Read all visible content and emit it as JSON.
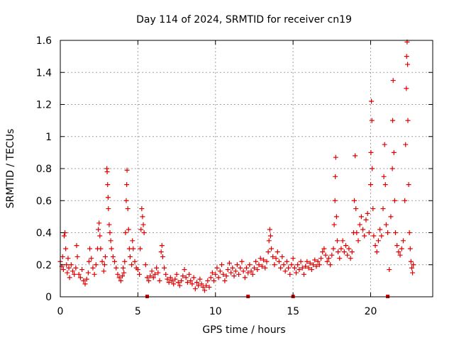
{
  "chart_data": {
    "type": "scatter",
    "title": "Day 114 of 2024, SRMTID for receiver cn19",
    "xlabel": "GPS time / hours",
    "ylabel": "SRMTID / TECUs",
    "xlim": [
      0,
      24
    ],
    "ylim": [
      0,
      1.6
    ],
    "xticks": [
      0,
      5,
      10,
      15,
      20
    ],
    "yticks": [
      0,
      0.2,
      0.4,
      0.6,
      0.8,
      1.0,
      1.2,
      1.4,
      1.6
    ],
    "xtick_labels": [
      "0",
      "5",
      "10",
      "15",
      "20"
    ],
    "ytick_labels": [
      "0",
      "0.2",
      "0.4",
      "0.6",
      "0.8",
      "1",
      "1.2",
      "1.4",
      "1.6"
    ],
    "grid": true,
    "marker": "+",
    "colors": {
      "series": "#e00000",
      "grid": "#a0a0a0",
      "axis": "#000000"
    },
    "series": [
      {
        "name": "SRMTID",
        "points": [
          [
            0.0,
            0.22
          ],
          [
            0.1,
            0.19
          ],
          [
            0.15,
            0.25
          ],
          [
            0.2,
            0.17
          ],
          [
            0.25,
            0.38
          ],
          [
            0.3,
            0.4
          ],
          [
            0.35,
            0.3
          ],
          [
            0.4,
            0.2
          ],
          [
            0.45,
            0.15
          ],
          [
            0.5,
            0.24
          ],
          [
            0.55,
            0.18
          ],
          [
            0.6,
            0.12
          ],
          [
            0.7,
            0.2
          ],
          [
            0.8,
            0.16
          ],
          [
            0.9,
            0.14
          ],
          [
            1.0,
            0.18
          ],
          [
            1.05,
            0.32
          ],
          [
            1.1,
            0.25
          ],
          [
            1.2,
            0.14
          ],
          [
            1.3,
            0.12
          ],
          [
            1.4,
            0.17
          ],
          [
            1.5,
            0.1
          ],
          [
            1.6,
            0.08
          ],
          [
            1.7,
            0.11
          ],
          [
            1.8,
            0.15
          ],
          [
            1.85,
            0.22
          ],
          [
            1.9,
            0.3
          ],
          [
            2.0,
            0.24
          ],
          [
            2.1,
            0.18
          ],
          [
            2.2,
            0.14
          ],
          [
            2.3,
            0.2
          ],
          [
            2.4,
            0.3
          ],
          [
            2.45,
            0.42
          ],
          [
            2.5,
            0.46
          ],
          [
            2.55,
            0.38
          ],
          [
            2.6,
            0.3
          ],
          [
            2.7,
            0.22
          ],
          [
            2.8,
            0.16
          ],
          [
            2.85,
            0.2
          ],
          [
            2.9,
            0.25
          ],
          [
            3.0,
            0.8
          ],
          [
            3.02,
            0.78
          ],
          [
            3.05,
            0.7
          ],
          [
            3.08,
            0.62
          ],
          [
            3.1,
            0.55
          ],
          [
            3.15,
            0.45
          ],
          [
            3.2,
            0.4
          ],
          [
            3.25,
            0.35
          ],
          [
            3.3,
            0.3
          ],
          [
            3.4,
            0.25
          ],
          [
            3.5,
            0.22
          ],
          [
            3.6,
            0.18
          ],
          [
            3.7,
            0.14
          ],
          [
            3.8,
            0.12
          ],
          [
            3.9,
            0.1
          ],
          [
            4.0,
            0.13
          ],
          [
            4.05,
            0.18
          ],
          [
            4.1,
            0.15
          ],
          [
            4.15,
            0.22
          ],
          [
            4.2,
            0.4
          ],
          [
            4.25,
            0.6
          ],
          [
            4.28,
            0.7
          ],
          [
            4.3,
            0.79
          ],
          [
            4.35,
            0.55
          ],
          [
            4.4,
            0.42
          ],
          [
            4.45,
            0.3
          ],
          [
            4.5,
            0.25
          ],
          [
            4.6,
            0.2
          ],
          [
            4.65,
            0.35
          ],
          [
            4.7,
            0.3
          ],
          [
            4.8,
            0.22
          ],
          [
            4.9,
            0.18
          ],
          [
            5.0,
            0.17
          ],
          [
            5.1,
            0.14
          ],
          [
            5.15,
            0.3
          ],
          [
            5.2,
            0.42
          ],
          [
            5.25,
            0.55
          ],
          [
            5.3,
            0.5
          ],
          [
            5.35,
            0.45
          ],
          [
            5.4,
            0.4
          ],
          [
            5.5,
            0.2
          ],
          [
            5.6,
            0.12
          ],
          [
            5.7,
            0.1
          ],
          [
            5.8,
            0.13
          ],
          [
            5.9,
            0.16
          ],
          [
            6.0,
            0.12
          ],
          [
            6.1,
            0.14
          ],
          [
            6.2,
            0.18
          ],
          [
            6.3,
            0.15
          ],
          [
            6.4,
            0.1
          ],
          [
            6.5,
            0.28
          ],
          [
            6.55,
            0.32
          ],
          [
            6.6,
            0.25
          ],
          [
            6.7,
            0.18
          ],
          [
            6.8,
            0.14
          ],
          [
            6.9,
            0.11
          ],
          [
            7.0,
            0.09
          ],
          [
            7.1,
            0.12
          ],
          [
            7.2,
            0.1
          ],
          [
            7.3,
            0.08
          ],
          [
            7.4,
            0.11
          ],
          [
            7.5,
            0.14
          ],
          [
            7.6,
            0.09
          ],
          [
            7.7,
            0.07
          ],
          [
            7.8,
            0.1
          ],
          [
            7.9,
            0.13
          ],
          [
            8.0,
            0.17
          ],
          [
            8.1,
            0.12
          ],
          [
            8.2,
            0.09
          ],
          [
            8.3,
            0.14
          ],
          [
            8.4,
            0.1
          ],
          [
            8.5,
            0.08
          ],
          [
            8.6,
            0.12
          ],
          [
            8.7,
            0.05
          ],
          [
            8.8,
            0.09
          ],
          [
            8.9,
            0.07
          ],
          [
            9.0,
            0.11
          ],
          [
            9.1,
            0.08
          ],
          [
            9.2,
            0.06
          ],
          [
            9.3,
            0.04
          ],
          [
            9.4,
            0.07
          ],
          [
            9.5,
            0.1
          ],
          [
            9.6,
            0.06
          ],
          [
            9.7,
            0.12
          ],
          [
            9.8,
            0.15
          ],
          [
            9.9,
            0.1
          ],
          [
            10.0,
            0.14
          ],
          [
            10.1,
            0.18
          ],
          [
            10.2,
            0.12
          ],
          [
            10.3,
            0.16
          ],
          [
            10.4,
            0.2
          ],
          [
            10.5,
            0.14
          ],
          [
            10.6,
            0.1
          ],
          [
            10.7,
            0.13
          ],
          [
            10.8,
            0.17
          ],
          [
            10.9,
            0.21
          ],
          [
            11.0,
            0.15
          ],
          [
            11.1,
            0.18
          ],
          [
            11.2,
            0.13
          ],
          [
            11.3,
            0.16
          ],
          [
            11.4,
            0.2
          ],
          [
            11.5,
            0.14
          ],
          [
            11.6,
            0.18
          ],
          [
            11.7,
            0.22
          ],
          [
            11.8,
            0.16
          ],
          [
            11.9,
            0.12
          ],
          [
            12.0,
            0.18
          ],
          [
            12.1,
            0.15
          ],
          [
            12.2,
            0.2
          ],
          [
            12.3,
            0.16
          ],
          [
            12.4,
            0.14
          ],
          [
            12.5,
            0.18
          ],
          [
            12.6,
            0.22
          ],
          [
            12.7,
            0.17
          ],
          [
            12.8,
            0.2
          ],
          [
            12.9,
            0.24
          ],
          [
            13.0,
            0.19
          ],
          [
            13.1,
            0.23
          ],
          [
            13.2,
            0.18
          ],
          [
            13.3,
            0.22
          ],
          [
            13.4,
            0.28
          ],
          [
            13.45,
            0.35
          ],
          [
            13.5,
            0.42
          ],
          [
            13.55,
            0.38
          ],
          [
            13.6,
            0.3
          ],
          [
            13.7,
            0.25
          ],
          [
            13.8,
            0.2
          ],
          [
            13.9,
            0.24
          ],
          [
            14.0,
            0.28
          ],
          [
            14.1,
            0.22
          ],
          [
            14.2,
            0.18
          ],
          [
            14.3,
            0.25
          ],
          [
            14.4,
            0.2
          ],
          [
            14.5,
            0.16
          ],
          [
            14.6,
            0.22
          ],
          [
            14.7,
            0.18
          ],
          [
            14.8,
            0.14
          ],
          [
            14.9,
            0.2
          ],
          [
            15.0,
            0.24
          ],
          [
            15.1,
            0.18
          ],
          [
            15.2,
            0.15
          ],
          [
            15.3,
            0.2
          ],
          [
            15.4,
            0.17
          ],
          [
            15.5,
            0.22
          ],
          [
            15.6,
            0.18
          ],
          [
            15.7,
            0.14
          ],
          [
            15.8,
            0.19
          ],
          [
            15.9,
            0.22
          ],
          [
            16.0,
            0.18
          ],
          [
            16.1,
            0.21
          ],
          [
            16.2,
            0.17
          ],
          [
            16.3,
            0.2
          ],
          [
            16.4,
            0.23
          ],
          [
            16.5,
            0.19
          ],
          [
            16.6,
            0.22
          ],
          [
            16.7,
            0.2
          ],
          [
            16.8,
            0.24
          ],
          [
            16.9,
            0.28
          ],
          [
            17.0,
            0.3
          ],
          [
            17.1,
            0.26
          ],
          [
            17.2,
            0.22
          ],
          [
            17.3,
            0.24
          ],
          [
            17.4,
            0.2
          ],
          [
            17.5,
            0.26
          ],
          [
            17.6,
            0.3
          ],
          [
            17.65,
            0.45
          ],
          [
            17.7,
            0.6
          ],
          [
            17.72,
            0.75
          ],
          [
            17.75,
            0.87
          ],
          [
            17.8,
            0.5
          ],
          [
            17.85,
            0.35
          ],
          [
            17.9,
            0.28
          ],
          [
            18.0,
            0.24
          ],
          [
            18.1,
            0.3
          ],
          [
            18.2,
            0.35
          ],
          [
            18.3,
            0.28
          ],
          [
            18.4,
            0.32
          ],
          [
            18.5,
            0.26
          ],
          [
            18.6,
            0.3
          ],
          [
            18.7,
            0.24
          ],
          [
            18.8,
            0.28
          ],
          [
            18.9,
            0.4
          ],
          [
            18.95,
            0.6
          ],
          [
            19.0,
            0.88
          ],
          [
            19.05,
            0.55
          ],
          [
            19.1,
            0.4
          ],
          [
            19.2,
            0.35
          ],
          [
            19.3,
            0.45
          ],
          [
            19.4,
            0.5
          ],
          [
            19.5,
            0.42
          ],
          [
            19.6,
            0.38
          ],
          [
            19.7,
            0.48
          ],
          [
            19.8,
            0.52
          ],
          [
            19.9,
            0.4
          ],
          [
            20.0,
            0.7
          ],
          [
            20.02,
            0.9
          ],
          [
            20.05,
            1.22
          ],
          [
            20.08,
            1.1
          ],
          [
            20.1,
            0.8
          ],
          [
            20.15,
            0.55
          ],
          [
            20.2,
            0.38
          ],
          [
            20.3,
            0.32
          ],
          [
            20.4,
            0.28
          ],
          [
            20.5,
            0.35
          ],
          [
            20.6,
            0.42
          ],
          [
            20.7,
            0.38
          ],
          [
            20.8,
            0.55
          ],
          [
            20.85,
            0.75
          ],
          [
            20.9,
            0.95
          ],
          [
            20.95,
            0.7
          ],
          [
            21.0,
            0.45
          ],
          [
            21.1,
            0.4
          ],
          [
            21.2,
            0.17
          ],
          [
            21.3,
            0.5
          ],
          [
            21.4,
            0.8
          ],
          [
            21.42,
            1.1
          ],
          [
            21.45,
            1.35
          ],
          [
            21.5,
            0.9
          ],
          [
            21.55,
            0.6
          ],
          [
            21.6,
            0.4
          ],
          [
            21.7,
            0.32
          ],
          [
            21.8,
            0.28
          ],
          [
            21.9,
            0.26
          ],
          [
            22.0,
            0.3
          ],
          [
            22.1,
            0.35
          ],
          [
            22.2,
            0.6
          ],
          [
            22.25,
            0.95
          ],
          [
            22.3,
            1.3
          ],
          [
            22.32,
            1.5
          ],
          [
            22.35,
            1.59
          ],
          [
            22.38,
            1.45
          ],
          [
            22.4,
            1.1
          ],
          [
            22.45,
            0.7
          ],
          [
            22.5,
            0.4
          ],
          [
            22.55,
            0.3
          ],
          [
            22.6,
            0.22
          ],
          [
            22.65,
            0.18
          ],
          [
            22.7,
            0.15
          ],
          [
            22.75,
            0.2
          ]
        ]
      }
    ],
    "flag_markers_x": [
      5.6,
      12.1,
      15.0,
      21.1
    ]
  }
}
